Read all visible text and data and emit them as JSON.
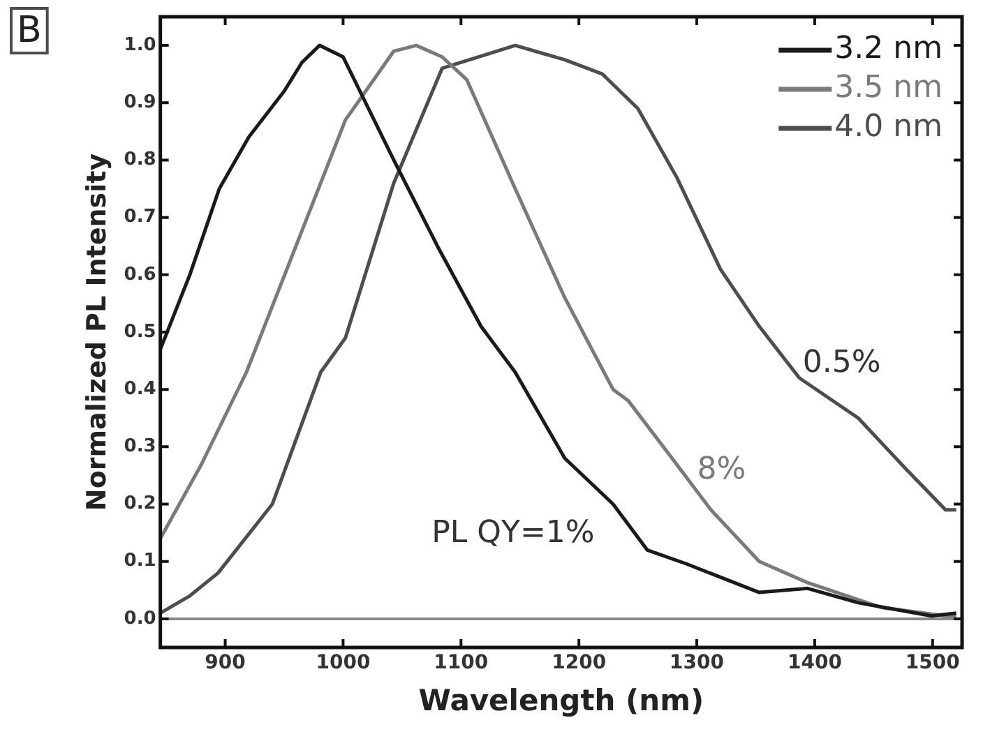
{
  "chart_data": {
    "type": "line",
    "xlabel": "Wavelength (nm)",
    "ylabel": "Normalized PL Intensity",
    "xlim": [
      845,
      1525
    ],
    "xticks": [
      900,
      1000,
      1100,
      1200,
      1300,
      1400,
      1500
    ],
    "ylim": [
      -0.05,
      1.05
    ],
    "yticks": [
      {
        "value": 0,
        "label": "0.0"
      },
      {
        "value": 0.1,
        "label": "0.1"
      },
      {
        "value": 0.2,
        "label": "0.2"
      },
      {
        "value": 0.3,
        "label": "0.3"
      },
      {
        "value": 0.4,
        "label": "0.4"
      },
      {
        "value": 0.5,
        "label": "0.5"
      },
      {
        "value": 0.6,
        "label": "0.6"
      },
      {
        "value": 0.7,
        "label": "0.7"
      },
      {
        "value": 0.8,
        "label": "0.8"
      },
      {
        "value": 0.9,
        "label": "0.9"
      },
      {
        "value": 1,
        "label": "1.0"
      }
    ],
    "grid": false,
    "legend": "top right",
    "marker": "none",
    "line_style": "solid",
    "series": [
      {
        "name": "3.2 nm",
        "color": "#1a1a1a",
        "x": [
          845,
          870,
          895,
          920,
          950,
          965,
          980,
          1000,
          1043,
          1080,
          1117,
          1146,
          1188,
          1229,
          1258,
          1291,
          1353,
          1394,
          1437,
          1499,
          1520
        ],
        "values": [
          0.47,
          0.6,
          0.75,
          0.84,
          0.92,
          0.97,
          1.0,
          0.98,
          0.8,
          0.65,
          0.51,
          0.43,
          0.28,
          0.2,
          0.12,
          0.096,
          0.046,
          0.053,
          0.028,
          0.005,
          0.01
        ]
      },
      {
        "name": "3.5 nm",
        "color": "#7a7a7a",
        "x": [
          845,
          880,
          918,
          960,
          1002,
          1043,
          1062,
          1084,
          1105,
          1146,
          1188,
          1229,
          1242,
          1279,
          1312,
          1353,
          1394,
          1456,
          1511,
          1520
        ],
        "values": [
          0.14,
          0.27,
          0.43,
          0.65,
          0.87,
          0.99,
          1.0,
          0.98,
          0.94,
          0.75,
          0.56,
          0.4,
          0.38,
          0.28,
          0.19,
          0.1,
          0.063,
          0.02,
          0.005,
          0.005
        ]
      },
      {
        "name": "4.0 nm",
        "color": "#4d4d4d",
        "x": [
          845,
          870,
          894,
          940,
          981,
          1002,
          1043,
          1084,
          1146,
          1188,
          1220,
          1250,
          1283,
          1320,
          1353,
          1387,
          1437,
          1478,
          1511,
          1520
        ],
        "values": [
          0.01,
          0.04,
          0.08,
          0.2,
          0.43,
          0.49,
          0.76,
          0.96,
          1.0,
          0.975,
          0.95,
          0.89,
          0.77,
          0.61,
          0.51,
          0.42,
          0.35,
          0.26,
          0.19,
          0.19
        ]
      }
    ],
    "ref_lines": [
      {
        "axis": "y",
        "value": 0,
        "color": "#8a8a8a"
      }
    ],
    "annotations": [
      "B",
      "PL QY=1%",
      "8%",
      "0.5%"
    ]
  }
}
